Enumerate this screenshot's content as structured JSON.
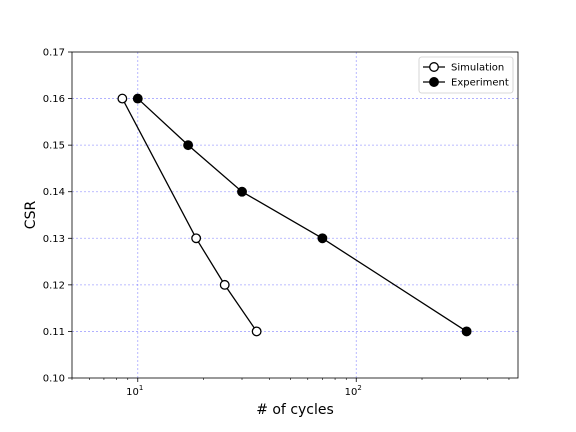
{
  "chart_data": {
    "type": "line",
    "xscale": "log",
    "xlabel": "# of cycles",
    "ylabel": "CSR",
    "xlim": [
      5,
      550
    ],
    "ylim": [
      0.1,
      0.17
    ],
    "grid": true,
    "legend_position": "top-right",
    "x_ticks": [
      {
        "value": 10,
        "base": "10",
        "exp": "1"
      },
      {
        "value": 100,
        "base": "10",
        "exp": "2"
      }
    ],
    "y_ticks": [
      "0.10",
      "0.11",
      "0.12",
      "0.13",
      "0.14",
      "0.15",
      "0.16",
      "0.17"
    ],
    "series": [
      {
        "name": "Simulation",
        "marker": "open-circle",
        "color": "#000000",
        "points": [
          {
            "x": 8.5,
            "y": 0.16
          },
          {
            "x": 18.5,
            "y": 0.13
          },
          {
            "x": 25,
            "y": 0.12
          },
          {
            "x": 35,
            "y": 0.11
          }
        ]
      },
      {
        "name": "Experiment",
        "marker": "filled-circle",
        "color": "#000000",
        "points": [
          {
            "x": 10,
            "y": 0.16
          },
          {
            "x": 17,
            "y": 0.15
          },
          {
            "x": 30,
            "y": 0.14
          },
          {
            "x": 70,
            "y": 0.13
          },
          {
            "x": 320,
            "y": 0.11
          }
        ]
      }
    ]
  }
}
